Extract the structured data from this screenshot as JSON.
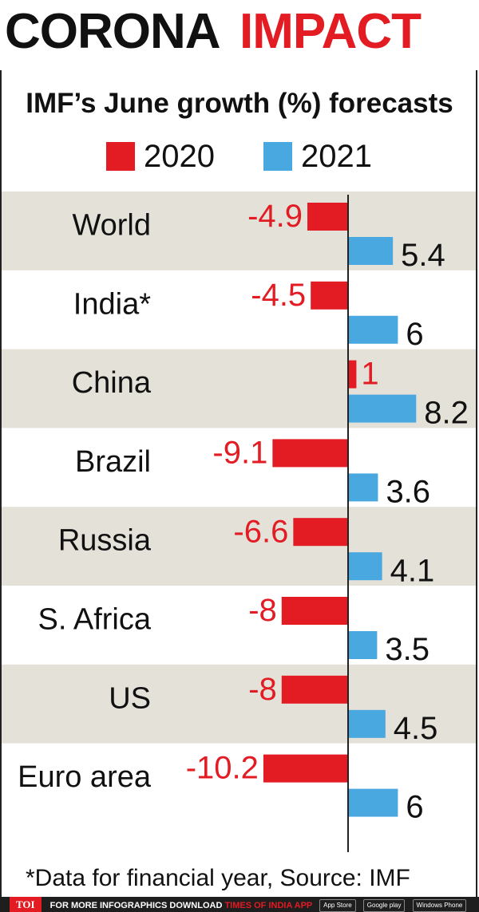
{
  "headline": {
    "word1": "CORONA",
    "word2": "IMPACT"
  },
  "colors": {
    "series_2020": "#e31b23",
    "series_2021": "#4aa8e0",
    "band": "#e3e1d8",
    "text": "#111111"
  },
  "chart_data": {
    "type": "bar",
    "orientation": "horizontal",
    "title": "IMF’s June growth (%) forecasts",
    "categories": [
      "World",
      "India*",
      "China",
      "Brazil",
      "Russia",
      "S. Africa",
      "US",
      "Euro area"
    ],
    "series": [
      {
        "name": "2020",
        "values": [
          -4.9,
          -4.5,
          1,
          -9.1,
          -6.6,
          -8,
          -8,
          -10.2
        ],
        "labels": [
          "-4.9",
          "-4.5",
          "1",
          "-9.1",
          "-6.6",
          "-8",
          "-8",
          "-10.2"
        ]
      },
      {
        "name": "2021",
        "values": [
          5.4,
          6,
          8.2,
          3.6,
          4.1,
          3.5,
          4.5,
          6
        ],
        "labels": [
          "5.4",
          "6",
          "8.2",
          "3.6",
          "4.1",
          "3.5",
          "4.5",
          "6"
        ]
      }
    ],
    "legend_placement": "top",
    "grid": false,
    "alternating_bands": true
  },
  "footnote": "*Data for financial year, Source: IMF",
  "footer": {
    "brand": "TOI",
    "text_prefix": "FOR MORE INFOGRAPHICS DOWNLOAD",
    "text_app": "TIMES OF INDIA APP",
    "badges": [
      "App Store",
      "Google play",
      "Windows Phone"
    ]
  }
}
